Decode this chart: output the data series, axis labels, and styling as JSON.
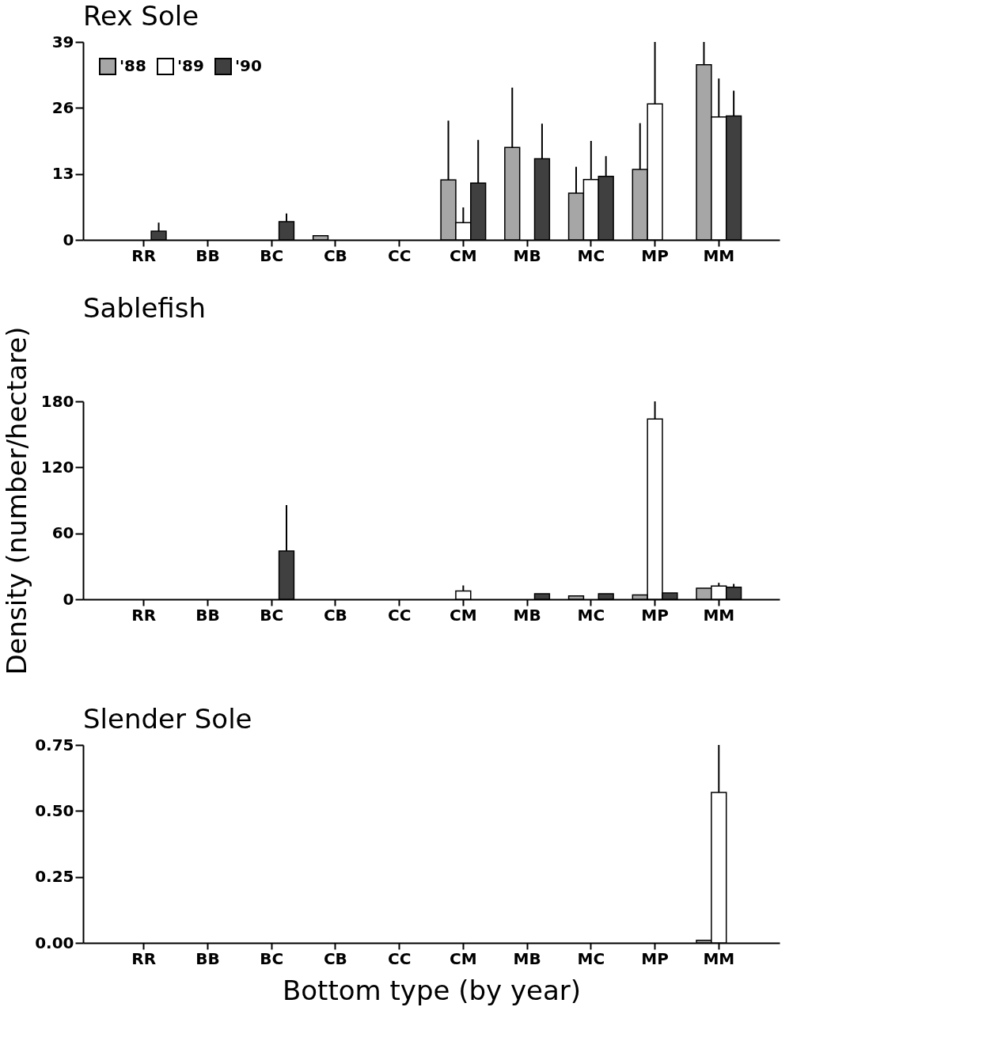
{
  "chart_data": [
    {
      "type": "bar",
      "title": "Rex Sole",
      "categories": [
        "RR",
        "BB",
        "BC",
        "CB",
        "CC",
        "CM",
        "MB",
        "MC",
        "MP",
        "MM"
      ],
      "ylim": [
        0,
        39
      ],
      "yticks": [
        0,
        13,
        26,
        39
      ],
      "legend": "top left",
      "series": [
        {
          "name": "'88",
          "color": "#a6a6a6",
          "values": [
            null,
            null,
            null,
            0.8,
            null,
            11.8,
            18.2,
            9.2,
            13.9,
            34.5
          ],
          "errors": [
            null,
            null,
            null,
            null,
            null,
            [
              11.8,
              23.5
            ],
            [
              18.2,
              30
            ],
            [
              9.2,
              14.4
            ],
            [
              13.9,
              23
            ],
            [
              34.5,
              39
            ]
          ]
        },
        {
          "name": "'89",
          "color": "#ffffff",
          "values": [
            null,
            null,
            null,
            null,
            null,
            3.4,
            null,
            11.9,
            26.8,
            24.2
          ],
          "errors": [
            null,
            null,
            null,
            null,
            null,
            [
              3.4,
              6.4
            ],
            null,
            [
              11.9,
              19.5
            ],
            [
              26.8,
              39
            ],
            [
              24.2,
              31.8
            ]
          ]
        },
        {
          "name": "'90",
          "color": "#404040",
          "values": [
            1.7,
            null,
            3.6,
            null,
            null,
            11.2,
            16,
            12.5,
            null,
            24.4
          ],
          "errors": [
            [
              1.7,
              3.4
            ],
            null,
            [
              3.6,
              5.2
            ],
            null,
            null,
            [
              11.2,
              19.7
            ],
            [
              16,
              22.9
            ],
            [
              12.5,
              16.5
            ],
            null,
            [
              24.4,
              29.4
            ]
          ]
        }
      ]
    },
    {
      "type": "bar",
      "title": "Sablefish",
      "ylabel": "Density (number/hectare)",
      "categories": [
        "RR",
        "BB",
        "BC",
        "CB",
        "CC",
        "CM",
        "MB",
        "MC",
        "MP",
        "MM"
      ],
      "ylim": [
        0,
        180
      ],
      "yticks": [
        0,
        60,
        120,
        180
      ],
      "series": [
        {
          "color": "#a6a6a6",
          "values": [
            null,
            null,
            null,
            null,
            null,
            null,
            null,
            3,
            4,
            10
          ],
          "errors": [
            null,
            null,
            null,
            null,
            null,
            null,
            null,
            null,
            null,
            null
          ]
        },
        {
          "color": "#ffffff",
          "values": [
            null,
            null,
            null,
            null,
            null,
            7.6,
            null,
            null,
            164,
            12
          ],
          "errors": [
            null,
            null,
            null,
            null,
            null,
            [
              7.6,
              12.6
            ],
            null,
            null,
            [
              164,
              180
            ],
            [
              12,
              15
            ]
          ]
        },
        {
          "color": "#404040",
          "values": [
            null,
            null,
            44,
            null,
            null,
            null,
            5,
            5,
            5.7,
            11
          ],
          "errors": [
            null,
            null,
            [
              44,
              85.7
            ],
            null,
            null,
            null,
            null,
            null,
            null,
            [
              11,
              14
            ]
          ]
        }
      ]
    },
    {
      "type": "bar",
      "title": "Slender Sole",
      "xlabel": "Bottom type (by year)",
      "categories": [
        "RR",
        "BB",
        "BC",
        "CB",
        "CC",
        "CM",
        "MB",
        "MC",
        "MP",
        "MM"
      ],
      "ylim": [
        0,
        0.75
      ],
      "yticks": [
        {
          "value": 0,
          "label": "0.00"
        },
        {
          "value": 0.25,
          "label": "0.25"
        },
        {
          "value": 0.5,
          "label": "0.50"
        },
        0.75
      ],
      "series": [
        {
          "color": "#a6a6a6",
          "values": [
            null,
            null,
            null,
            null,
            null,
            null,
            null,
            null,
            null,
            0.01
          ]
        },
        {
          "color": "#ffffff",
          "values": [
            null,
            null,
            null,
            null,
            null,
            null,
            null,
            null,
            null,
            0.57
          ],
          "errors": [
            null,
            null,
            null,
            null,
            null,
            null,
            null,
            null,
            null,
            [
              0.57,
              0.75
            ]
          ]
        },
        {
          "color": "#404040",
          "values": [
            null,
            null,
            null,
            null,
            null,
            null,
            null,
            null,
            null,
            null
          ]
        }
      ]
    }
  ]
}
